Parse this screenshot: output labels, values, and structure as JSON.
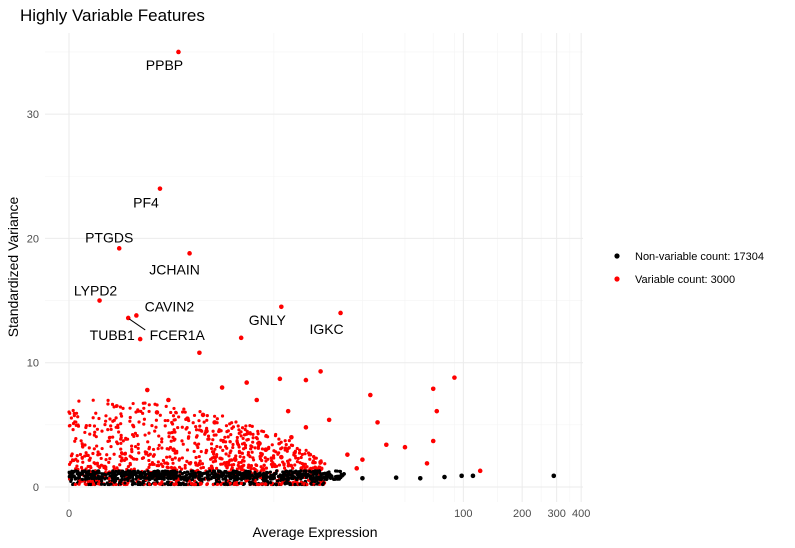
{
  "chart_data": {
    "type": "scatter",
    "title": "Highly Variable Features",
    "xlabel": "Average Expression",
    "ylabel": "Standardized Variance",
    "x_scale": "log10(x+1)",
    "xlim": [
      0,
      450
    ],
    "ylim": [
      -1,
      37
    ],
    "grid": true,
    "x_ticks": [
      0,
      100,
      200,
      300,
      400
    ],
    "y_ticks": [
      0,
      10,
      20,
      30
    ],
    "legend_position": "right",
    "series": [
      {
        "name": "Non-variable count: 17304",
        "color": "#000000",
        "points": [
          [
            98,
            0.9
          ],
          [
            112,
            0.9
          ],
          [
            290,
            0.9
          ],
          [
            80,
            0.8
          ],
          [
            60,
            0.7
          ],
          [
            45,
            0.75
          ],
          [
            30,
            0.7
          ],
          [
            22,
            0.8
          ],
          [
            12,
            0.7
          ]
        ]
      },
      {
        "name": "Variable count: 3000",
        "color": "#ff0000",
        "points": [
          [
            2.6,
            35
          ],
          [
            1.9,
            24
          ],
          [
            0.8,
            19.2
          ],
          [
            3.1,
            18.8
          ],
          [
            0.43,
            15
          ],
          [
            1.2,
            13.8
          ],
          [
            1.0,
            13.6
          ],
          [
            1.3,
            11.9
          ],
          [
            11.0,
            14.5
          ],
          [
            23.0,
            14
          ],
          [
            6.5,
            12
          ],
          [
            3.6,
            10.8
          ],
          [
            90,
            8.8
          ],
          [
            70,
            7.9
          ],
          [
            18,
            9.3
          ],
          [
            10.8,
            8.7
          ],
          [
            15,
            8.6
          ],
          [
            7.0,
            8.4
          ],
          [
            73,
            6.1
          ],
          [
            33,
            7.4
          ],
          [
            8.0,
            7.0
          ],
          [
            5.0,
            8.0
          ],
          [
            12,
            6.1
          ],
          [
            20,
            5.4
          ],
          [
            12.5,
            4.0
          ],
          [
            8.3,
            3.5
          ],
          [
            4.0,
            4.5
          ],
          [
            2.4,
            3.0
          ],
          [
            122,
            1.3
          ],
          [
            9.0,
            3.0
          ],
          [
            36,
            5.2
          ],
          [
            15,
            4.8
          ],
          [
            40,
            3.4
          ],
          [
            70,
            3.7
          ],
          [
            25,
            2.6
          ],
          [
            50,
            3.2
          ],
          [
            18,
            2.0
          ],
          [
            6.0,
            2.2
          ],
          [
            11,
            2.4
          ],
          [
            28,
            1.5
          ],
          [
            65,
            1.9
          ],
          [
            30,
            2.2
          ],
          [
            3.0,
            5.5
          ],
          [
            1.8,
            6.0
          ],
          [
            1.5,
            7.8
          ],
          [
            3.8,
            5.8
          ],
          [
            2.2,
            7.0
          ],
          [
            4.5,
            5.2
          ]
        ]
      }
    ],
    "annotations": [
      {
        "text": "PPBP",
        "x": 2.6,
        "y": 35
      },
      {
        "text": "PF4",
        "x": 1.9,
        "y": 24
      },
      {
        "text": "PTGDS",
        "x": 0.8,
        "y": 19.2
      },
      {
        "text": "JCHAIN",
        "x": 3.1,
        "y": 18.8
      },
      {
        "text": "LYPD2",
        "x": 0.43,
        "y": 15
      },
      {
        "text": "CAVIN2",
        "x": 1.2,
        "y": 13.8
      },
      {
        "text": "GNLY",
        "x": 11.0,
        "y": 14.5
      },
      {
        "text": "IGKC",
        "x": 23.0,
        "y": 14
      },
      {
        "text": "TUBB1",
        "x": 1.0,
        "y": 13.6
      },
      {
        "text": "FCER1A",
        "x": 1.0,
        "y": 13.6
      }
    ]
  }
}
